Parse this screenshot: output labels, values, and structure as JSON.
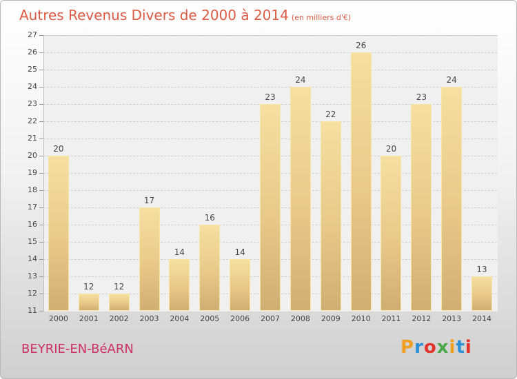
{
  "header": {
    "title": "Autres Revenus Divers de 2000 à 2014",
    "unit": "(en milliers d'€)"
  },
  "footer": {
    "location": "BEYRIE-EN-BéARN",
    "logo_text": "Proxiti"
  },
  "colors": {
    "title": "#dd5a44",
    "location": "#cc2f63",
    "bar_top": "#f6dfa0",
    "bar_bottom": "#cfae72"
  },
  "chart_data": {
    "type": "bar",
    "title": "Autres Revenus Divers de 2000 à 2014",
    "subtitle": "(en milliers d'€)",
    "xlabel": "",
    "ylabel": "",
    "categories": [
      "2000",
      "2001",
      "2002",
      "2003",
      "2004",
      "2005",
      "2006",
      "2007",
      "2008",
      "2009",
      "2010",
      "2011",
      "2012",
      "2013",
      "2014"
    ],
    "values": [
      20,
      12,
      12,
      17,
      14,
      16,
      14,
      23,
      24,
      22,
      26,
      20,
      23,
      24,
      13
    ],
    "ylim": [
      11,
      27
    ],
    "yticks": [
      11,
      12,
      13,
      14,
      15,
      16,
      17,
      18,
      19,
      20,
      21,
      22,
      23,
      24,
      25,
      26,
      27
    ],
    "grid": true,
    "legend": "none"
  }
}
